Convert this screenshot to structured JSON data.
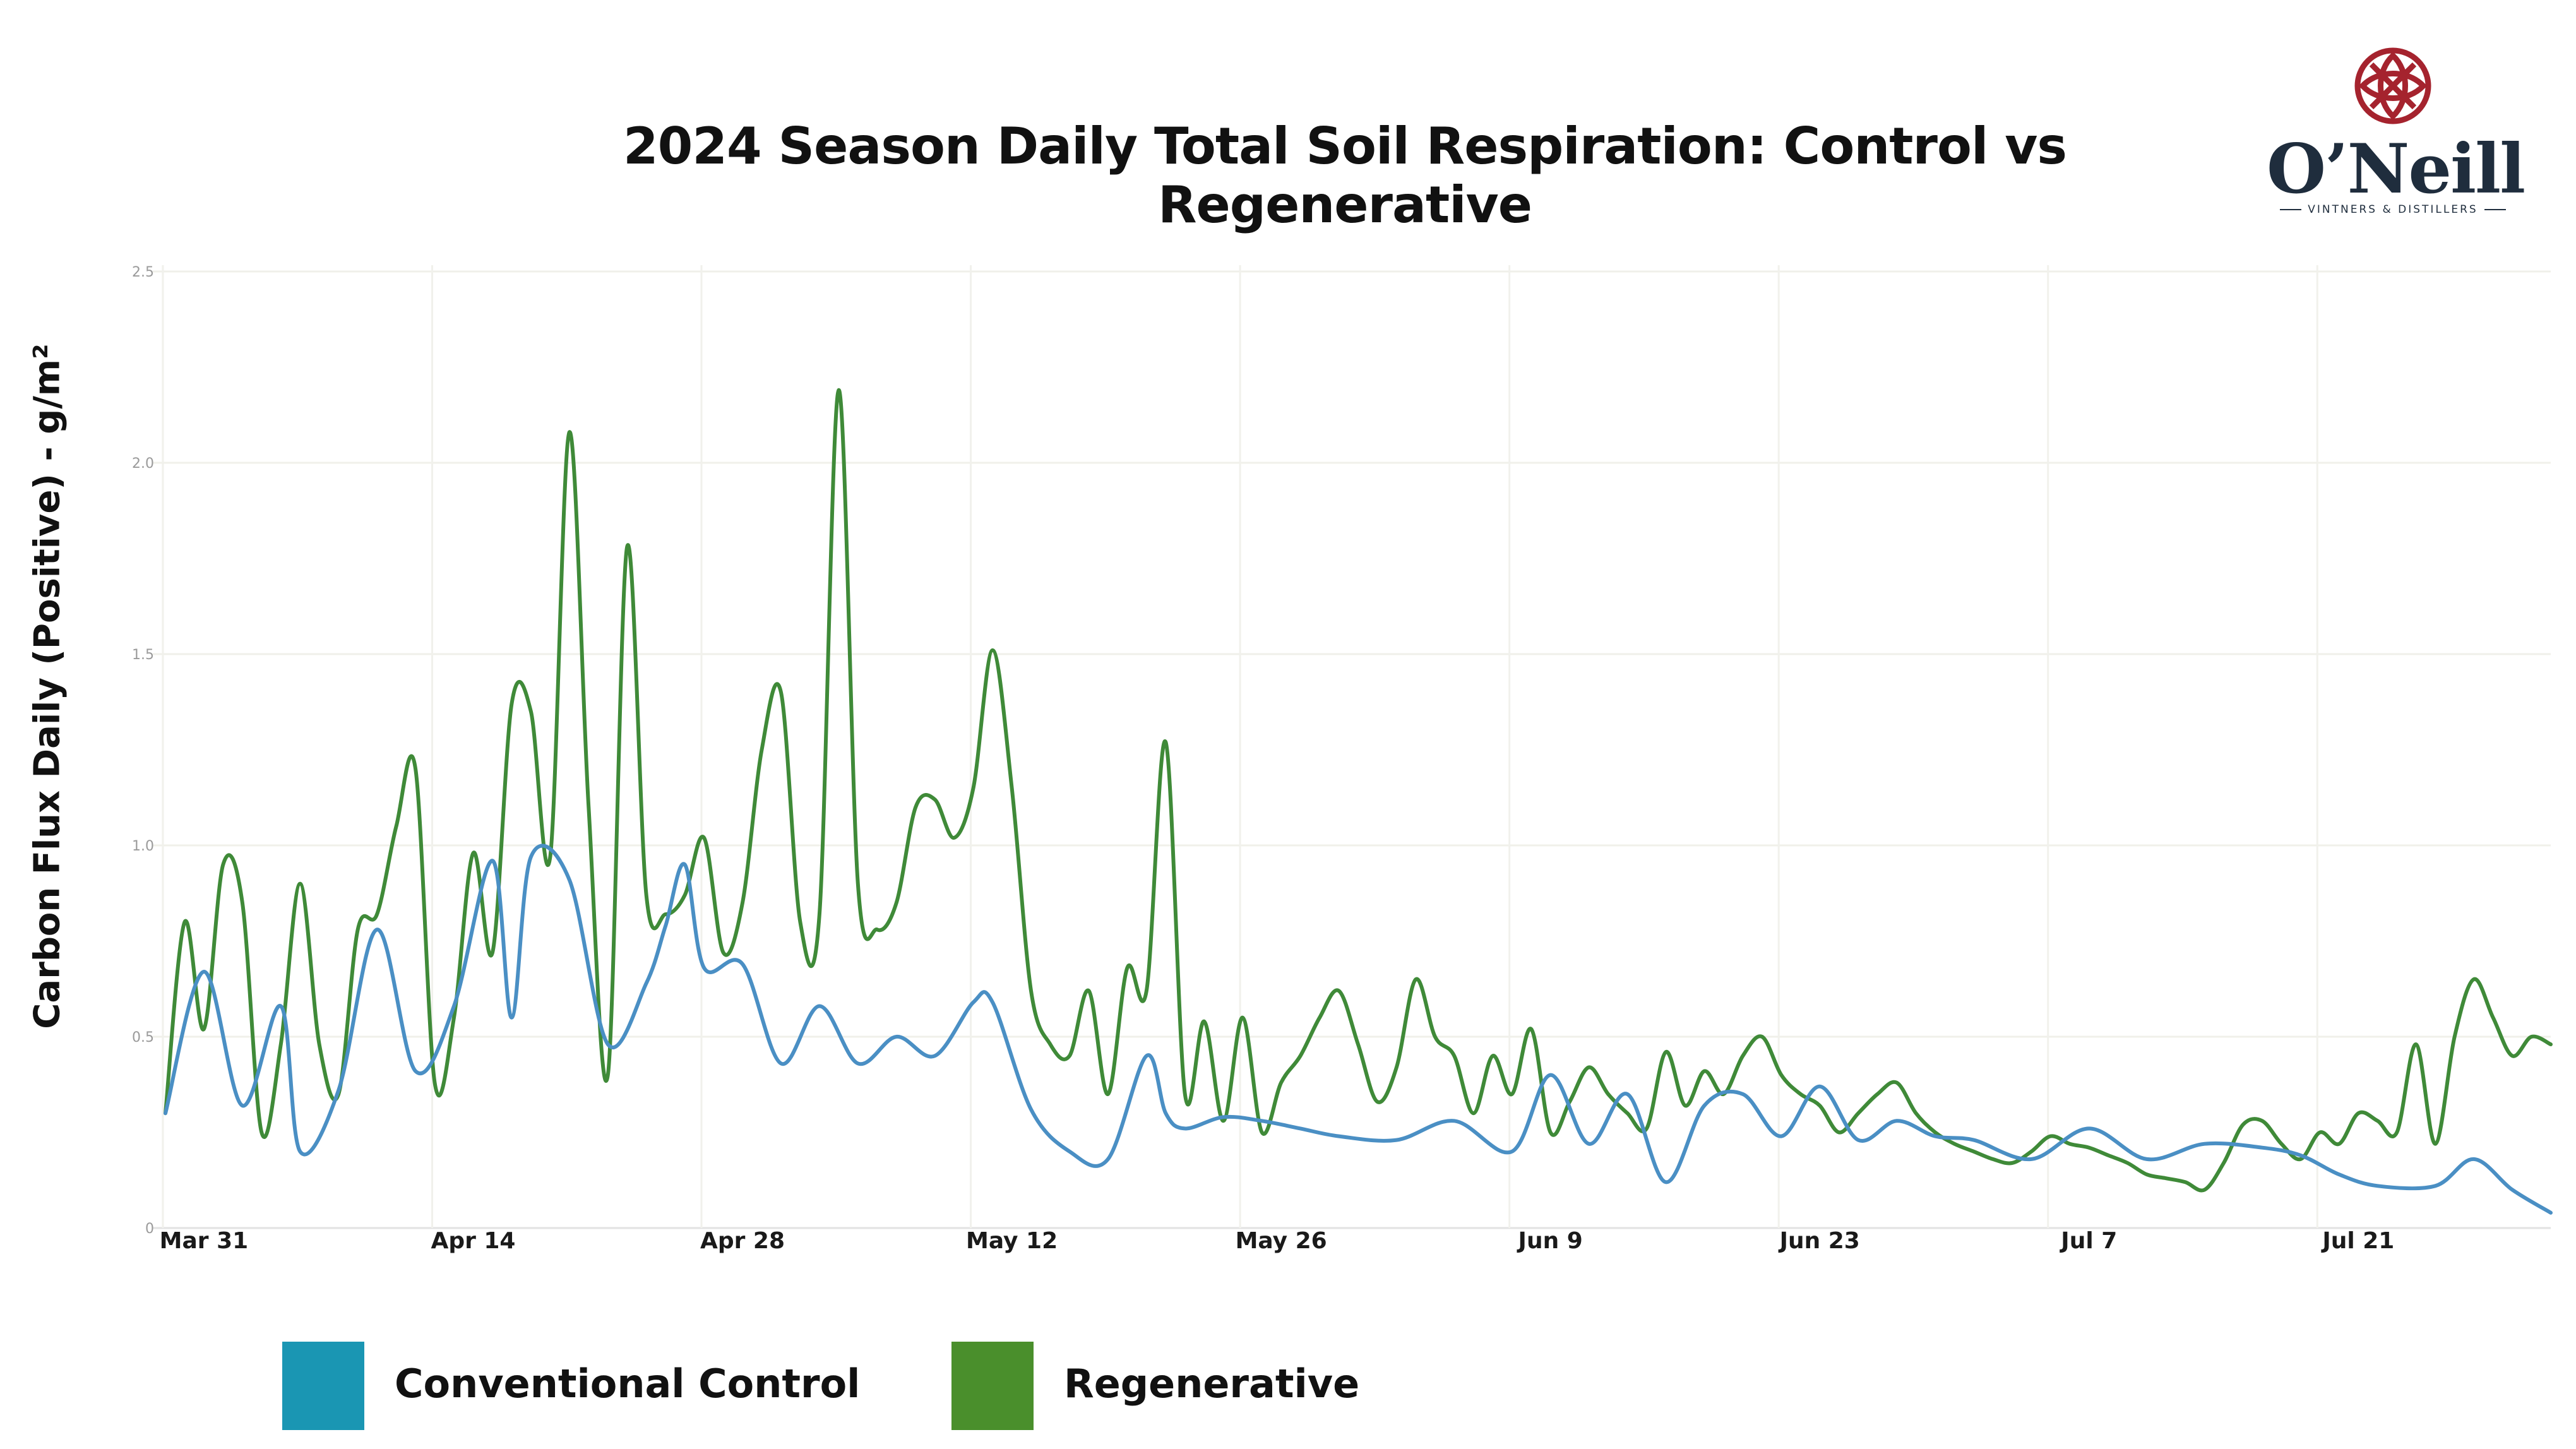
{
  "colors": {
    "conventional_legend": "#1a96b3",
    "regenerative_legend": "#4a8f2c",
    "conventional_line": "#4a8fc4",
    "regenerative_line": "#3f8a38",
    "logo_accent": "#a5232e",
    "logo_text": "#1f2d3d"
  },
  "logo": {
    "name": "O’Neill",
    "tagline": "VINTNERS & DISTILLERS",
    "icon": "crossed-circle-emblem-icon"
  },
  "chart_data": {
    "type": "line",
    "title": "2024 Season Daily Total Soil Respiration: Control vs Regenerative",
    "xlabel": "",
    "ylabel": "Carbon Flux Daily (Positive)  - g/m²",
    "x_axis": "date",
    "x_start": "2024-03-29",
    "x_end": "2024-07-31",
    "x_ticks": [
      "Mar 31",
      "Apr 14",
      "Apr 28",
      "May 12",
      "May 26",
      "Jun 9",
      "Jun 23",
      "Jul 7",
      "Jul 21"
    ],
    "y_ticks": [
      "0",
      "0.5",
      "1.0",
      "1.5",
      "2.0",
      "2.5"
    ],
    "ylim": [
      0,
      2.5
    ],
    "grid": true,
    "legend_position": "bottom-left",
    "series": [
      {
        "name": "Conventional Control",
        "x": [
          "2024-03-29",
          "2024-03-31",
          "2024-04-02",
          "2024-04-04",
          "2024-04-05",
          "2024-04-07",
          "2024-04-09",
          "2024-04-11",
          "2024-04-13",
          "2024-04-15",
          "2024-04-16",
          "2024-04-17",
          "2024-04-19",
          "2024-04-21",
          "2024-04-23",
          "2024-04-24",
          "2024-04-25",
          "2024-04-26",
          "2024-04-28",
          "2024-04-30",
          "2024-05-02",
          "2024-05-04",
          "2024-05-06",
          "2024-05-08",
          "2024-05-10",
          "2024-05-11",
          "2024-05-13",
          "2024-05-15",
          "2024-05-17",
          "2024-05-19",
          "2024-05-20",
          "2024-05-21",
          "2024-05-23",
          "2024-05-25",
          "2024-05-27",
          "2024-05-29",
          "2024-06-01",
          "2024-06-04",
          "2024-06-07",
          "2024-06-09",
          "2024-06-11",
          "2024-06-13",
          "2024-06-15",
          "2024-06-17",
          "2024-06-19",
          "2024-06-21",
          "2024-06-23",
          "2024-06-25",
          "2024-06-27",
          "2024-06-29",
          "2024-07-01",
          "2024-07-04",
          "2024-07-07",
          "2024-07-10",
          "2024-07-13",
          "2024-07-16",
          "2024-07-18",
          "2024-07-20",
          "2024-07-22",
          "2024-07-25",
          "2024-07-27",
          "2024-07-29",
          "2024-07-31"
        ],
        "values": [
          0.3,
          0.67,
          0.32,
          0.58,
          0.2,
          0.36,
          0.78,
          0.41,
          0.58,
          0.96,
          0.55,
          0.97,
          0.91,
          0.48,
          0.64,
          0.79,
          0.95,
          0.68,
          0.69,
          0.43,
          0.58,
          0.43,
          0.5,
          0.45,
          0.59,
          0.59,
          0.31,
          0.2,
          0.18,
          0.45,
          0.3,
          0.26,
          0.29,
          0.28,
          0.26,
          0.24,
          0.23,
          0.28,
          0.2,
          0.4,
          0.22,
          0.35,
          0.12,
          0.32,
          0.35,
          0.24,
          0.37,
          0.23,
          0.28,
          0.24,
          0.23,
          0.18,
          0.26,
          0.18,
          0.22,
          0.21,
          0.19,
          0.14,
          0.11,
          0.11,
          0.18,
          0.1,
          0.04
        ]
      },
      {
        "name": "Regenerative",
        "x": [
          "2024-03-29",
          "2024-03-30",
          "2024-03-31",
          "2024-04-01",
          "2024-04-02",
          "2024-04-03",
          "2024-04-04",
          "2024-04-05",
          "2024-04-06",
          "2024-04-07",
          "2024-04-08",
          "2024-04-09",
          "2024-04-10",
          "2024-04-11",
          "2024-04-12",
          "2024-04-13",
          "2024-04-14",
          "2024-04-15",
          "2024-04-16",
          "2024-04-17",
          "2024-04-18",
          "2024-04-19",
          "2024-04-20",
          "2024-04-21",
          "2024-04-22",
          "2024-04-23",
          "2024-04-24",
          "2024-04-25",
          "2024-04-26",
          "2024-04-27",
          "2024-04-28",
          "2024-04-29",
          "2024-04-30",
          "2024-05-01",
          "2024-05-02",
          "2024-05-03",
          "2024-05-04",
          "2024-05-05",
          "2024-05-06",
          "2024-05-07",
          "2024-05-08",
          "2024-05-09",
          "2024-05-10",
          "2024-05-11",
          "2024-05-12",
          "2024-05-13",
          "2024-05-14",
          "2024-05-15",
          "2024-05-16",
          "2024-05-17",
          "2024-05-18",
          "2024-05-19",
          "2024-05-20",
          "2024-05-21",
          "2024-05-22",
          "2024-05-23",
          "2024-05-24",
          "2024-05-25",
          "2024-05-26",
          "2024-05-27",
          "2024-05-28",
          "2024-05-29",
          "2024-05-30",
          "2024-05-31",
          "2024-06-01",
          "2024-06-02",
          "2024-06-03",
          "2024-06-04",
          "2024-06-05",
          "2024-06-06",
          "2024-06-07",
          "2024-06-08",
          "2024-06-09",
          "2024-06-10",
          "2024-06-11",
          "2024-06-12",
          "2024-06-13",
          "2024-06-14",
          "2024-06-15",
          "2024-06-16",
          "2024-06-17",
          "2024-06-18",
          "2024-06-19",
          "2024-06-20",
          "2024-06-21",
          "2024-06-22",
          "2024-06-23",
          "2024-06-24",
          "2024-06-25",
          "2024-06-26",
          "2024-06-27",
          "2024-06-28",
          "2024-06-29",
          "2024-06-30",
          "2024-07-01",
          "2024-07-02",
          "2024-07-03",
          "2024-07-04",
          "2024-07-05",
          "2024-07-06",
          "2024-07-07",
          "2024-07-08",
          "2024-07-09",
          "2024-07-10",
          "2024-07-11",
          "2024-07-12",
          "2024-07-13",
          "2024-07-14",
          "2024-07-15",
          "2024-07-16",
          "2024-07-17",
          "2024-07-18",
          "2024-07-19",
          "2024-07-20",
          "2024-07-21",
          "2024-07-22",
          "2024-07-23",
          "2024-07-24",
          "2024-07-25",
          "2024-07-26",
          "2024-07-27",
          "2024-07-28",
          "2024-07-29",
          "2024-07-30",
          "2024-07-31"
        ],
        "values": [
          0.3,
          0.8,
          0.52,
          0.95,
          0.85,
          0.25,
          0.48,
          0.9,
          0.48,
          0.35,
          0.78,
          0.82,
          1.05,
          1.2,
          0.38,
          0.55,
          0.98,
          0.72,
          1.37,
          1.35,
          0.97,
          2.08,
          1.1,
          0.4,
          1.78,
          0.87,
          0.82,
          0.87,
          1.02,
          0.72,
          0.85,
          1.25,
          1.4,
          0.8,
          0.82,
          2.19,
          0.9,
          0.78,
          0.85,
          1.1,
          1.12,
          1.02,
          1.15,
          1.51,
          1.15,
          0.62,
          0.48,
          0.45,
          0.62,
          0.35,
          0.68,
          0.62,
          1.27,
          0.35,
          0.54,
          0.28,
          0.55,
          0.25,
          0.38,
          0.45,
          0.55,
          0.62,
          0.48,
          0.33,
          0.42,
          0.65,
          0.5,
          0.45,
          0.3,
          0.45,
          0.35,
          0.52,
          0.25,
          0.33,
          0.42,
          0.35,
          0.3,
          0.26,
          0.46,
          0.32,
          0.41,
          0.35,
          0.45,
          0.5,
          0.4,
          0.35,
          0.32,
          0.25,
          0.3,
          0.35,
          0.38,
          0.3,
          0.25,
          0.22,
          0.2,
          0.18,
          0.17,
          0.2,
          0.24,
          0.22,
          0.21,
          0.19,
          0.17,
          0.14,
          0.13,
          0.12,
          0.1,
          0.17,
          0.27,
          0.28,
          0.22,
          0.18,
          0.25,
          0.22,
          0.3,
          0.28,
          0.25,
          0.48,
          0.22,
          0.5,
          0.65,
          0.55,
          0.45,
          0.5,
          0.48
        ]
      }
    ]
  }
}
